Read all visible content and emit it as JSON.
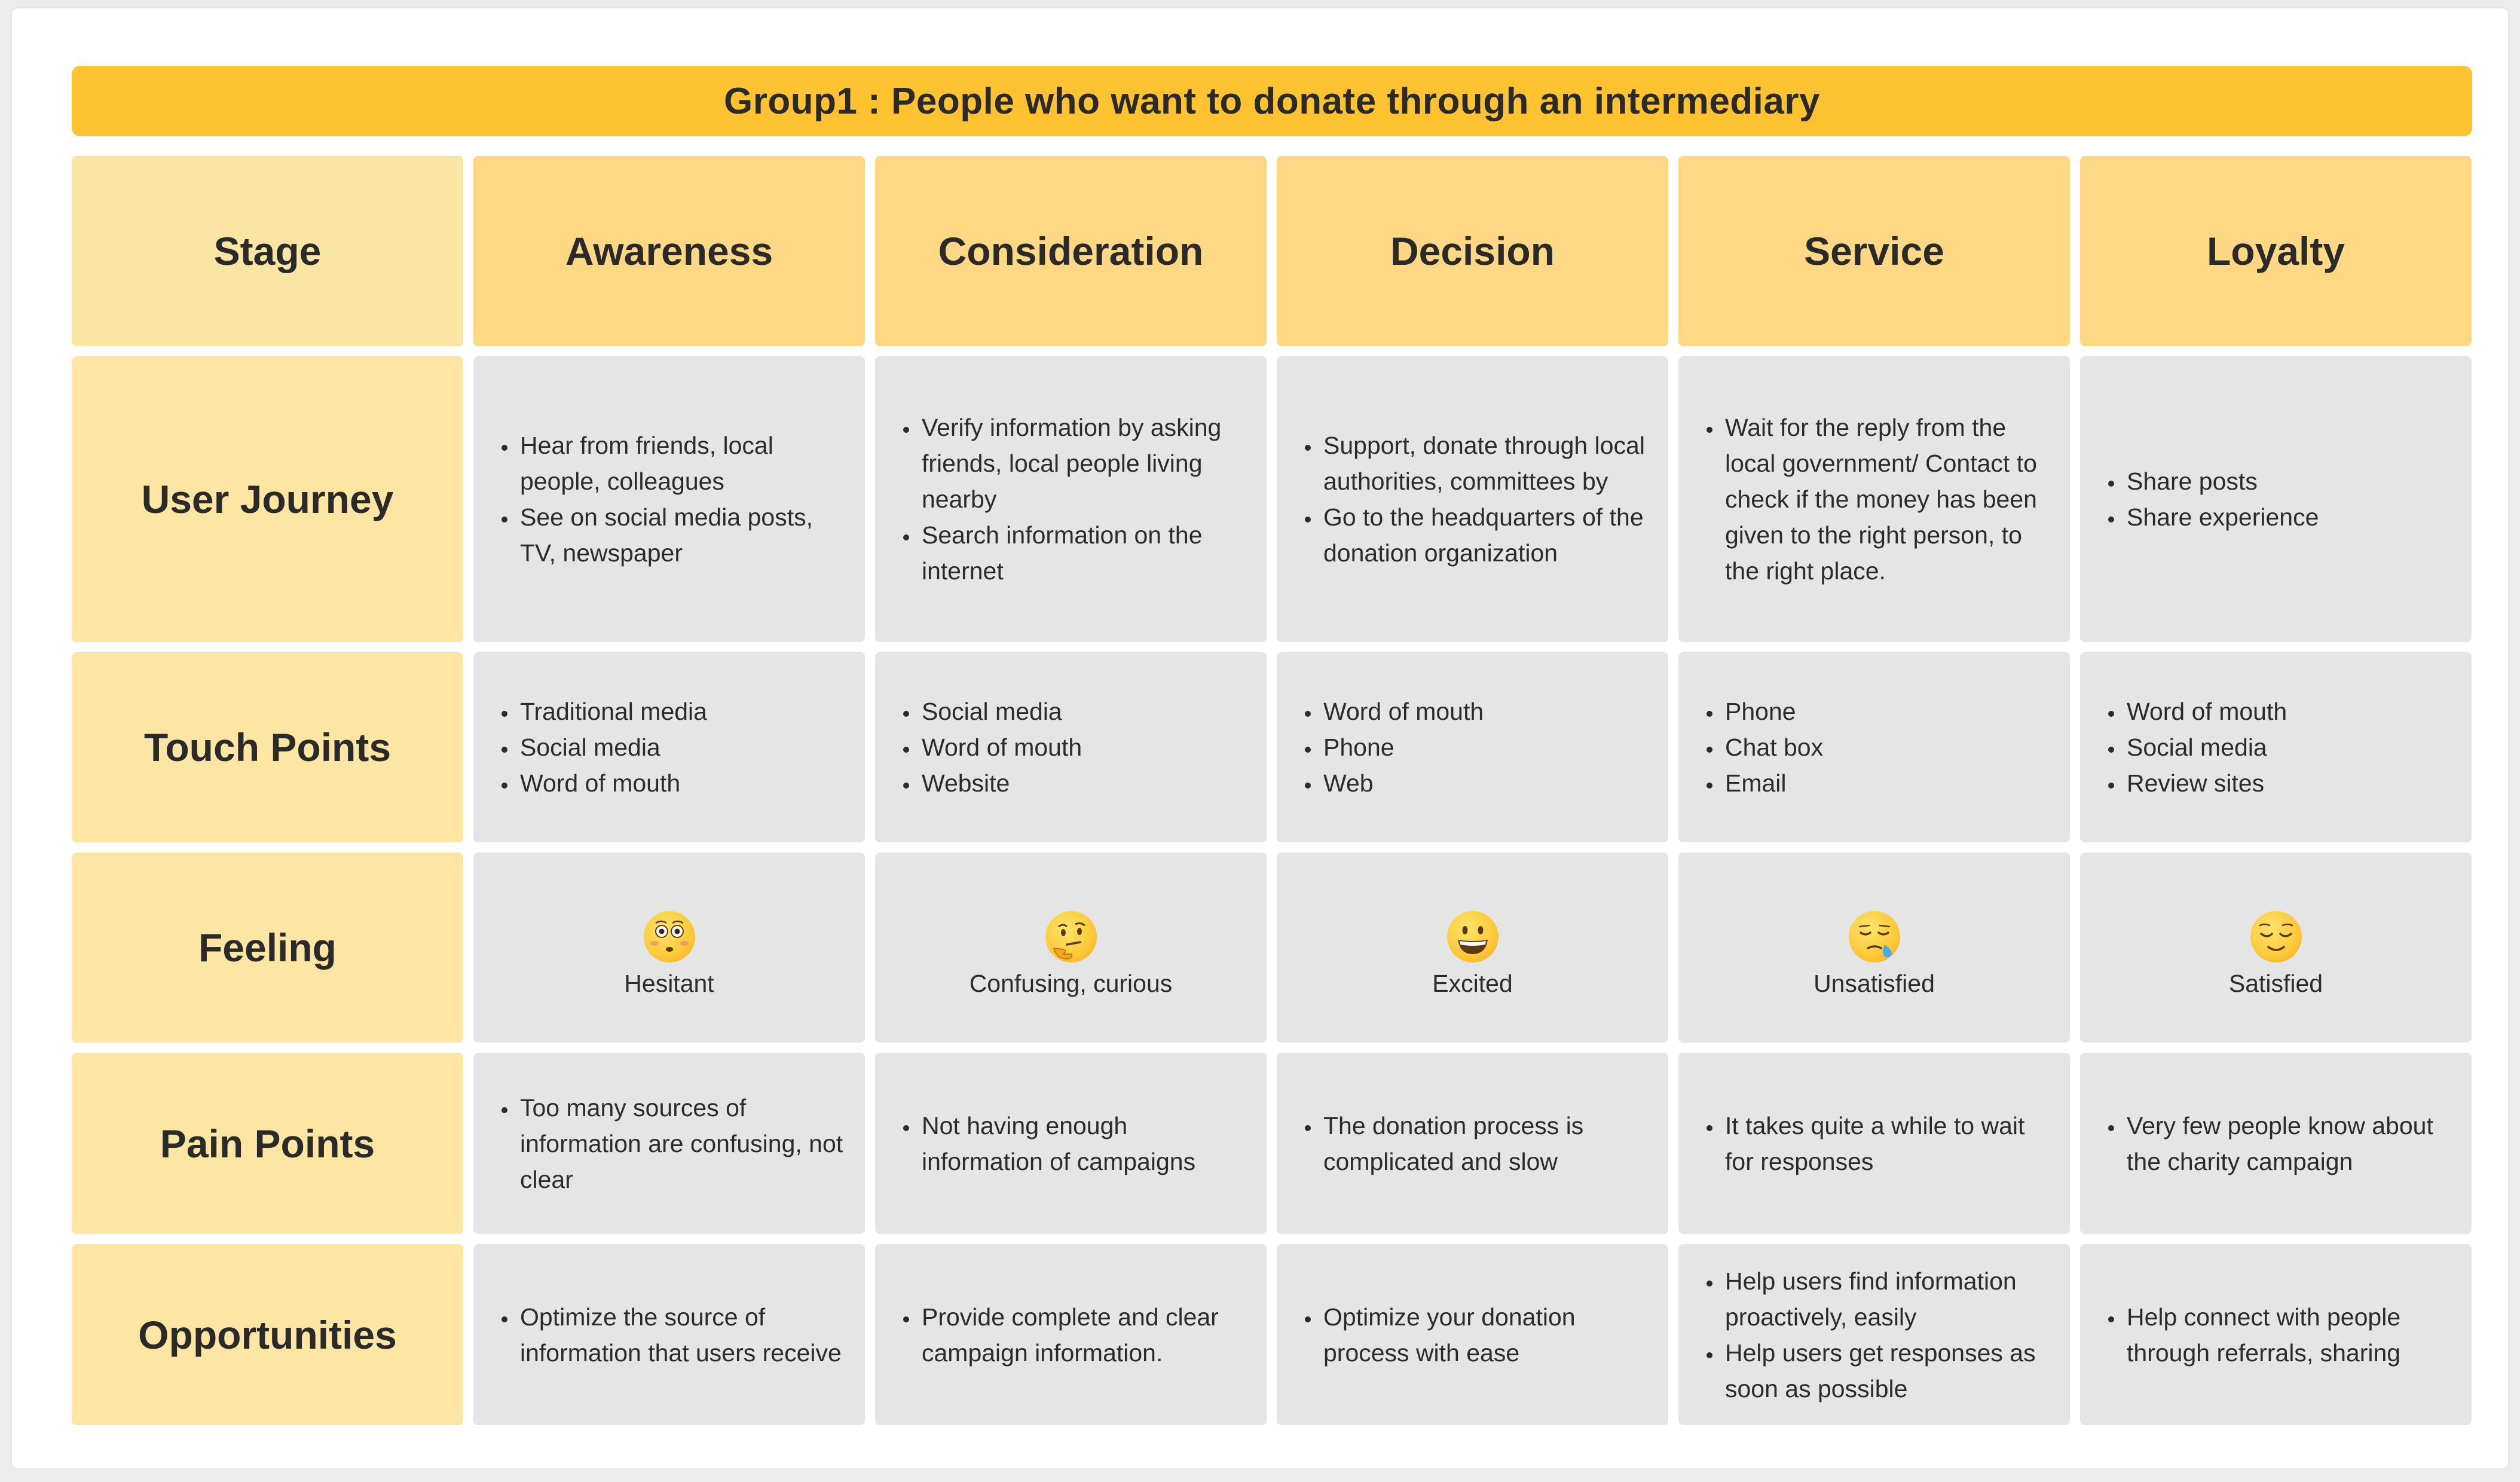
{
  "title": "Group1 : People who want to donate through an intermediary",
  "corner_label": "Stage",
  "stages": [
    "Awareness",
    "Consideration",
    "Decision",
    "Service",
    "Loyalty"
  ],
  "rows": {
    "user_journey": {
      "label": "User Journey",
      "cells": [
        [
          "Hear from friends, local people, colleagues",
          "See on social media posts, TV, newspaper"
        ],
        [
          "Verify information by asking friends, local people living nearby",
          "Search information on the internet"
        ],
        [
          "Support, donate through local authorities, committees by",
          "Go to the headquarters of the donation organization"
        ],
        [
          "Wait for the reply from the local government/ Contact to check if the money has been given to the right person, to the right place."
        ],
        [
          "Share posts",
          "Share experience"
        ]
      ]
    },
    "touch_points": {
      "label": "Touch Points",
      "cells": [
        [
          "Traditional media",
          "Social media",
          "Word of mouth"
        ],
        [
          "Social media",
          "Word of mouth",
          "Website"
        ],
        [
          "Word of mouth",
          "Phone",
          "Web"
        ],
        [
          "Phone",
          "Chat box",
          "Email"
        ],
        [
          "Word of mouth",
          "Social media",
          "Review sites"
        ]
      ]
    },
    "feeling": {
      "label": "Feeling",
      "cells": [
        {
          "icon": "flushed-face-icon",
          "text": "Hesitant"
        },
        {
          "icon": "thinking-face-icon",
          "text": "Confusing, curious"
        },
        {
          "icon": "grinning-face-icon",
          "text": "Excited"
        },
        {
          "icon": "sleepy-face-icon",
          "text": "Unsatisfied"
        },
        {
          "icon": "relieved-face-icon",
          "text": "Satisfied"
        }
      ]
    },
    "pain_points": {
      "label": "Pain Points",
      "cells": [
        [
          "Too many sources of information are confusing, not clear"
        ],
        [
          "Not having enough information of campaigns"
        ],
        [
          "The donation process is complicated and slow"
        ],
        [
          "It takes quite a while to wait for responses"
        ],
        [
          "Very few people know about the charity campaign"
        ]
      ]
    },
    "opportunities": {
      "label": "Opportunities",
      "cells": [
        [
          "Optimize the source of information that users receive"
        ],
        [
          "Provide complete and clear campaign information."
        ],
        [
          "Optimize your donation process with ease"
        ],
        [
          "Help users find information proactively, easily",
          "Help users get responses as soon as possible"
        ],
        [
          "Help connect with people through referrals, sharing"
        ]
      ]
    }
  },
  "colors": {
    "title_bar": "#ffc332",
    "stage_header": "#fed885",
    "corner": "#fae5a5",
    "row_label": "#fde5a4",
    "body_cell": "#e5e5e5"
  }
}
